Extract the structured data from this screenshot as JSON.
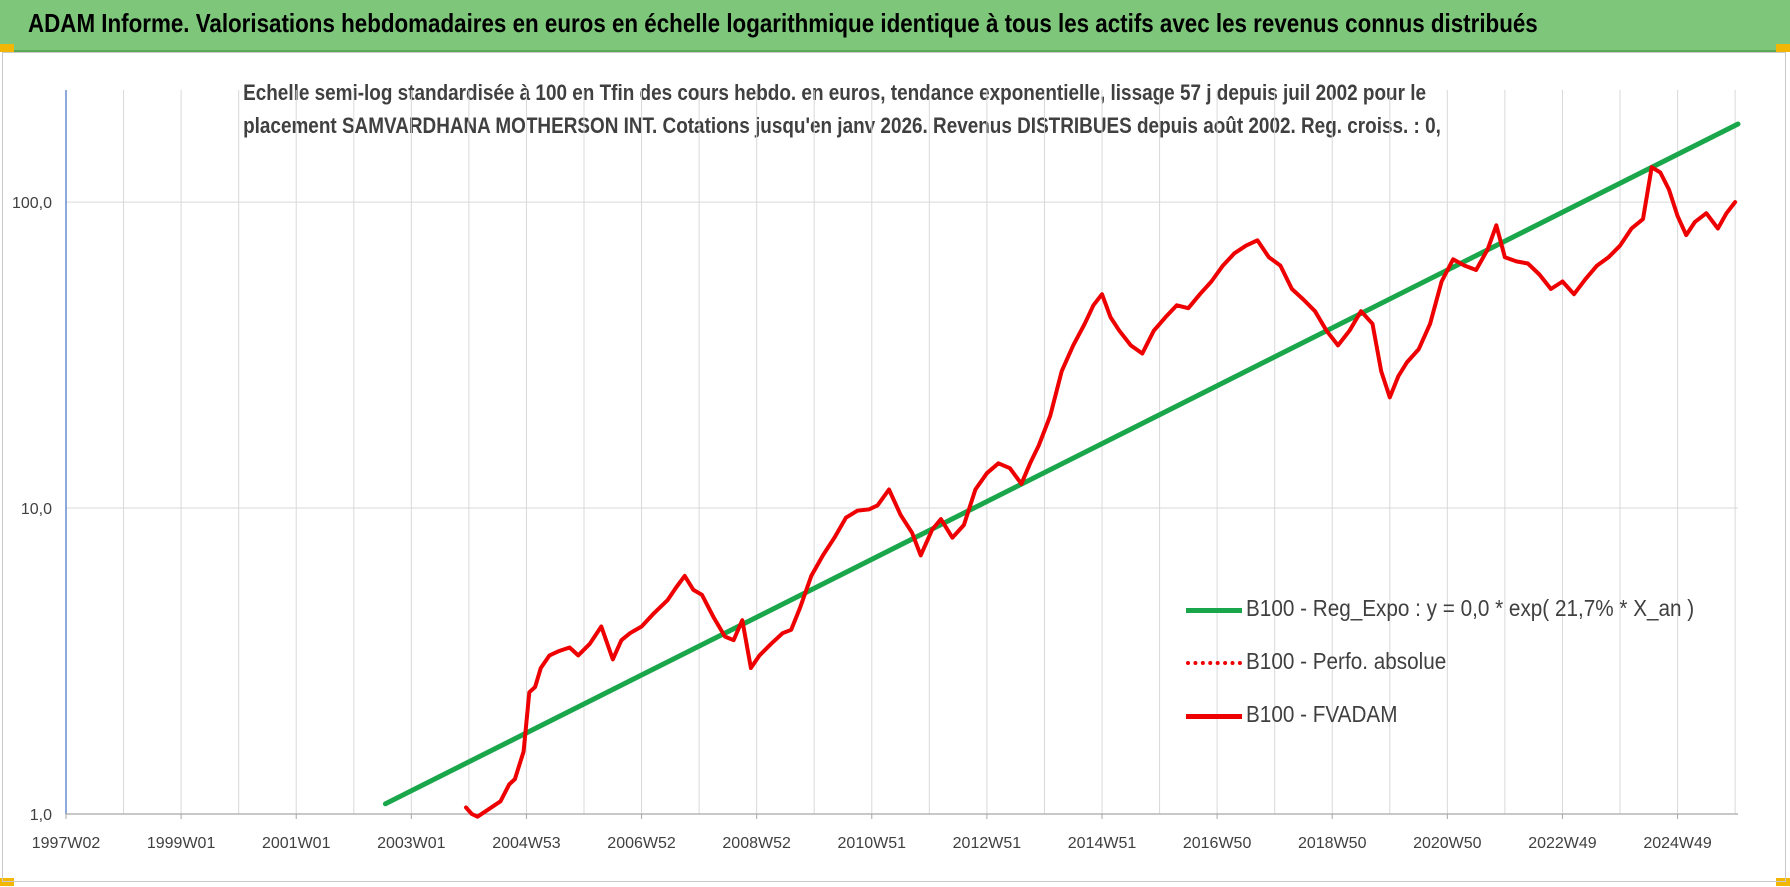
{
  "header": {
    "title": "ADAM Informe. Valorisations hebdomadaires en euros en échelle logarithmique identique à tous les actifs avec les revenus connus distribués"
  },
  "colors": {
    "header_bg": "#7dc67a",
    "regression": "#1aa64a",
    "fvadam": "#ee0000",
    "perfo": "#ee0000",
    "grid": "#d9d9d9",
    "axis": "#4472c4"
  },
  "chart_data": {
    "type": "line",
    "title_lines": [
      "Echelle semi-log standardisée à 100 en Tfin des cours hebdo. en euros, tendance exponentielle, lissage 57 j depuis juil 2002 pour le",
      "placement SAMVARDHANA MOTHERSON INT. Cotations jusqu'en janv 2026. Revenus DISTRIBUES depuis août 2002. Reg. croiss. : 0,"
    ],
    "y_scale": "log",
    "ylim": [
      1,
      200
    ],
    "y_ticks": [
      {
        "value": 1,
        "label": "1,0"
      },
      {
        "value": 10,
        "label": "10,0"
      },
      {
        "value": 100,
        "label": "100,0"
      }
    ],
    "xlim": [
      1997.0,
      2026.05
    ],
    "x_ticks": [
      {
        "value": 1997.0,
        "label": "1997W02"
      },
      {
        "value": 1999.0,
        "label": "1999W01"
      },
      {
        "value": 2001.0,
        "label": "2001W01"
      },
      {
        "value": 2003.0,
        "label": "2003W01"
      },
      {
        "value": 2005.0,
        "label": "2004W53"
      },
      {
        "value": 2007.0,
        "label": "2006W52"
      },
      {
        "value": 2009.0,
        "label": "2008W52"
      },
      {
        "value": 2011.0,
        "label": "2010W51"
      },
      {
        "value": 2013.0,
        "label": "2012W51"
      },
      {
        "value": 2015.0,
        "label": "2014W51"
      },
      {
        "value": 2017.0,
        "label": "2016W50"
      },
      {
        "value": 2019.0,
        "label": "2018W50"
      },
      {
        "value": 2021.0,
        "label": "2020W50"
      },
      {
        "value": 2023.0,
        "label": "2022W49"
      },
      {
        "value": 2025.0,
        "label": "2024W49"
      }
    ],
    "grid": true,
    "legend_position": "bottom-right",
    "series": [
      {
        "name": "B100 - Reg_Expo : y = 0,0 * exp( 21,7% *  X_an )",
        "style": "solid-thick",
        "x": [
          2002.55,
          2026.05
        ],
        "y": [
          1.08,
          180
        ]
      },
      {
        "name": "B100 - Perfo. absolue",
        "style": "dotted",
        "x": [],
        "y": []
      },
      {
        "name": "B100 - FVADAM",
        "style": "solid",
        "x": [
          2003.95,
          2004.05,
          2004.15,
          2004.55,
          2004.7,
          2004.8,
          2004.95,
          2005.05,
          2005.15,
          2005.25,
          2005.4,
          2005.55,
          2005.75,
          2005.9,
          2006.1,
          2006.3,
          2006.5,
          2006.65,
          2006.8,
          2007.0,
          2007.2,
          2007.45,
          2007.6,
          2007.75,
          2007.9,
          2008.05,
          2008.25,
          2008.45,
          2008.6,
          2008.75,
          2008.9,
          2009.05,
          2009.25,
          2009.45,
          2009.6,
          2009.75,
          2009.95,
          2010.15,
          2010.35,
          2010.55,
          2010.75,
          2010.95,
          2011.1,
          2011.3,
          2011.5,
          2011.7,
          2011.85,
          2012.05,
          2012.2,
          2012.4,
          2012.6,
          2012.8,
          2013.0,
          2013.2,
          2013.4,
          2013.6,
          2013.75,
          2013.9,
          2014.1,
          2014.3,
          2014.5,
          2014.7,
          2014.85,
          2015.0,
          2015.15,
          2015.3,
          2015.5,
          2015.7,
          2015.9,
          2016.1,
          2016.3,
          2016.5,
          2016.7,
          2016.9,
          2017.1,
          2017.3,
          2017.5,
          2017.7,
          2017.9,
          2018.1,
          2018.3,
          2018.5,
          2018.7,
          2018.9,
          2019.1,
          2019.3,
          2019.5,
          2019.7,
          2019.85,
          2020.0,
          2020.15,
          2020.3,
          2020.5,
          2020.7,
          2020.9,
          2021.1,
          2021.3,
          2021.5,
          2021.7,
          2021.85,
          2022.0,
          2022.2,
          2022.4,
          2022.6,
          2022.8,
          2023.0,
          2023.2,
          2023.4,
          2023.6,
          2023.8,
          2024.0,
          2024.2,
          2024.4,
          2024.55,
          2024.7,
          2024.85,
          2025.0,
          2025.15,
          2025.3,
          2025.5,
          2025.7,
          2025.85,
          2026.0
        ],
        "y": [
          1.05,
          1.0,
          0.98,
          1.1,
          1.25,
          1.3,
          1.6,
          2.5,
          2.6,
          3.0,
          3.3,
          3.4,
          3.5,
          3.3,
          3.6,
          4.1,
          3.2,
          3.7,
          3.9,
          4.1,
          4.5,
          5.0,
          5.5,
          6.0,
          5.4,
          5.2,
          4.4,
          3.8,
          3.7,
          4.3,
          3.0,
          3.3,
          3.6,
          3.9,
          4.0,
          4.7,
          6.0,
          7.0,
          8.0,
          9.3,
          9.8,
          9.9,
          10.2,
          11.5,
          9.5,
          8.3,
          7.0,
          8.5,
          9.2,
          8.0,
          8.8,
          11.5,
          13.0,
          14.0,
          13.5,
          12.0,
          14.0,
          16.0,
          20.0,
          28.0,
          34.0,
          40.0,
          46.0,
          50.0,
          42.0,
          38.0,
          34.0,
          32.0,
          38.0,
          42.0,
          46.0,
          45.0,
          50.0,
          55.0,
          62.0,
          68.0,
          72.0,
          75.0,
          66.0,
          62.0,
          52.0,
          48.0,
          44.0,
          38.0,
          34.0,
          38.0,
          44.0,
          40.0,
          28.0,
          23.0,
          27.0,
          30.0,
          33.0,
          40.0,
          55.0,
          65.0,
          62.0,
          60.0,
          70.0,
          84.0,
          66.0,
          64.0,
          63.0,
          58.0,
          52.0,
          55.0,
          50.0,
          56.0,
          62.0,
          66.0,
          72.0,
          82.0,
          88.0,
          130.0,
          125.0,
          110.0,
          90.0,
          78.0,
          86.0,
          92.0,
          82.0,
          92.0,
          100.0
        ]
      }
    ]
  }
}
